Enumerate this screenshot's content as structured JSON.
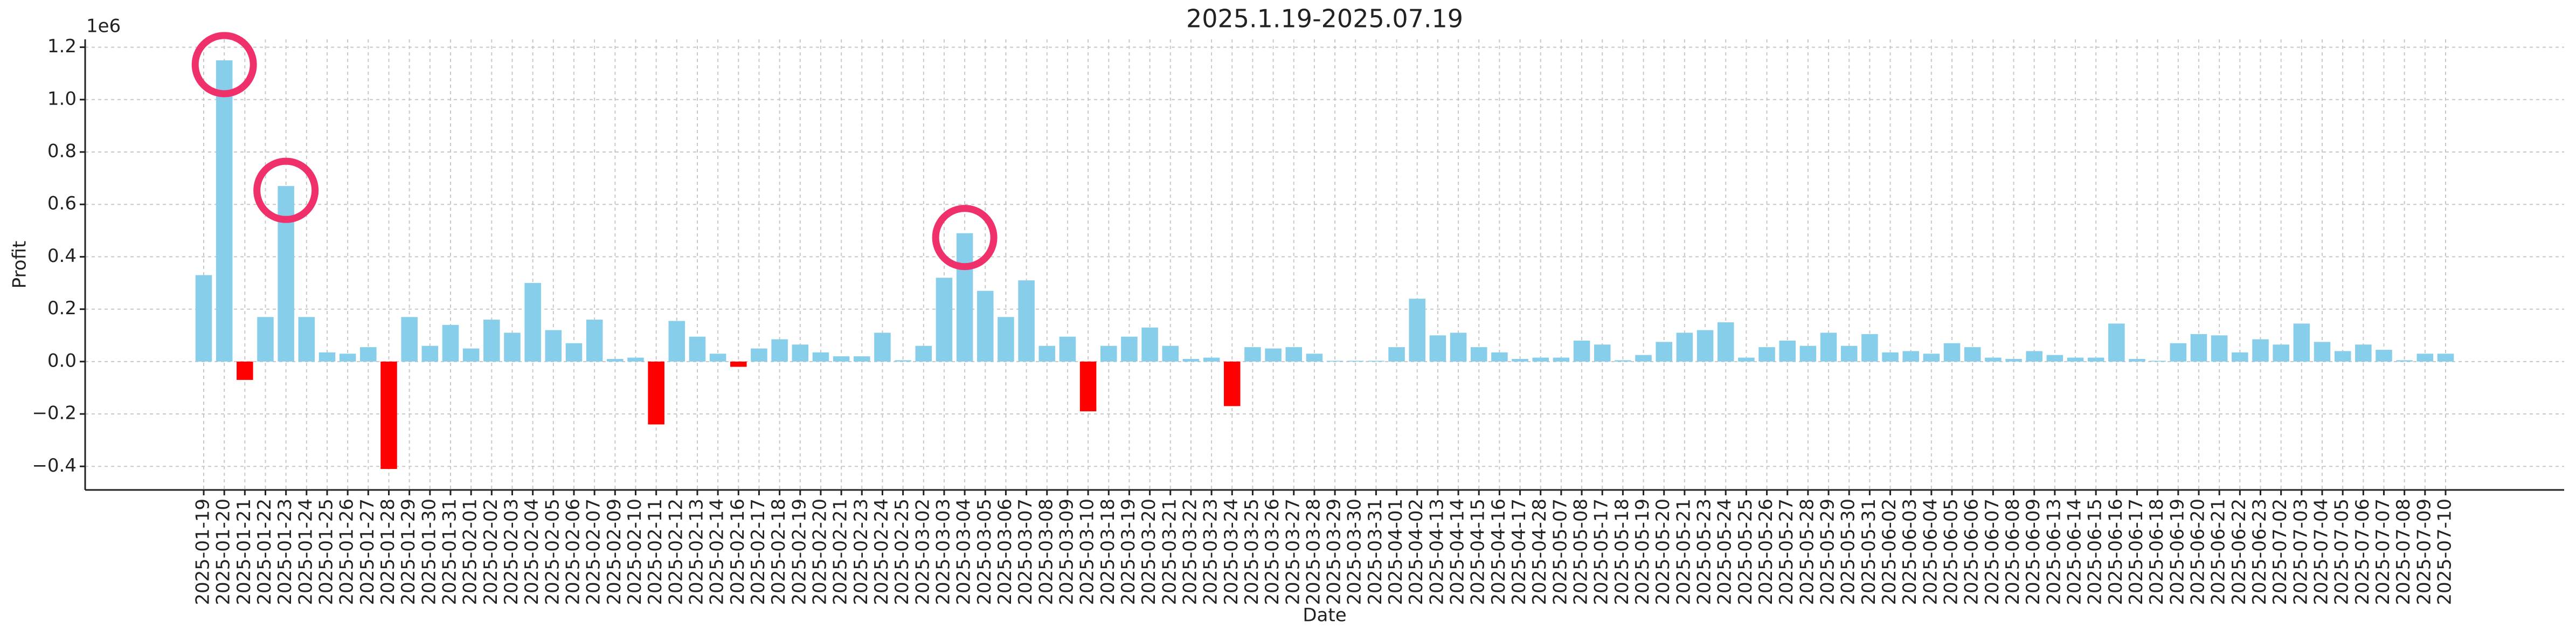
{
  "chart_data": {
    "type": "bar",
    "title": "2025.1.19-2025.07.19",
    "xlabel": "Date",
    "ylabel": "Profit",
    "offset_label": "1e6",
    "categories": [
      "2025-01-19",
      "2025-01-20",
      "2025-01-21",
      "2025-01-22",
      "2025-01-23",
      "2025-01-24",
      "2025-01-25",
      "2025-01-26",
      "2025-01-27",
      "2025-01-28",
      "2025-01-29",
      "2025-01-30",
      "2025-01-31",
      "2025-02-01",
      "2025-02-02",
      "2025-02-03",
      "2025-02-04",
      "2025-02-05",
      "2025-02-06",
      "2025-02-07",
      "2025-02-09",
      "2025-02-10",
      "2025-02-11",
      "2025-02-12",
      "2025-02-13",
      "2025-02-14",
      "2025-02-16",
      "2025-02-17",
      "2025-02-18",
      "2025-02-19",
      "2025-02-20",
      "2025-02-21",
      "2025-02-23",
      "2025-02-24",
      "2025-02-25",
      "2025-03-02",
      "2025-03-03",
      "2025-03-04",
      "2025-03-05",
      "2025-03-06",
      "2025-03-07",
      "2025-03-08",
      "2025-03-09",
      "2025-03-10",
      "2025-03-18",
      "2025-03-19",
      "2025-03-20",
      "2025-03-21",
      "2025-03-22",
      "2025-03-23",
      "2025-03-24",
      "2025-03-25",
      "2025-03-26",
      "2025-03-27",
      "2025-03-28",
      "2025-03-29",
      "2025-03-30",
      "2025-03-31",
      "2025-04-01",
      "2025-04-02",
      "2025-04-13",
      "2025-04-14",
      "2025-04-15",
      "2025-04-16",
      "2025-04-17",
      "2025-04-28",
      "2025-05-07",
      "2025-05-08",
      "2025-05-17",
      "2025-05-18",
      "2025-05-19",
      "2025-05-20",
      "2025-05-21",
      "2025-05-23",
      "2025-05-24",
      "2025-05-25",
      "2025-05-26",
      "2025-05-27",
      "2025-05-28",
      "2025-05-29",
      "2025-05-30",
      "2025-05-31",
      "2025-06-02",
      "2025-06-03",
      "2025-06-04",
      "2025-06-05",
      "2025-06-06",
      "2025-06-07",
      "2025-06-08",
      "2025-06-09",
      "2025-06-13",
      "2025-06-14",
      "2025-06-15",
      "2025-06-16",
      "2025-06-17",
      "2025-06-18",
      "2025-06-19",
      "2025-06-20",
      "2025-06-21",
      "2025-06-22",
      "2025-06-23",
      "2025-07-02",
      "2025-07-03",
      "2025-07-04",
      "2025-07-05",
      "2025-07-06",
      "2025-07-07",
      "2025-07-08",
      "2025-07-09",
      "2025-07-10"
    ],
    "values": [
      0.33,
      1.15,
      -0.07,
      0.17,
      0.67,
      0.17,
      0.035,
      0.03,
      0.055,
      -0.41,
      0.17,
      0.06,
      0.14,
      0.05,
      0.16,
      0.11,
      0.3,
      0.12,
      0.07,
      0.16,
      0.01,
      0.015,
      -0.24,
      0.155,
      0.095,
      0.03,
      -0.02,
      0.05,
      0.085,
      0.065,
      0.035,
      0.02,
      0.02,
      0.11,
      0.005,
      0.06,
      0.32,
      0.49,
      0.27,
      0.17,
      0.31,
      0.06,
      0.095,
      -0.19,
      0.06,
      0.095,
      0.13,
      0.06,
      0.01,
      0.015,
      -0.17,
      0.055,
      0.05,
      0.055,
      0.03,
      0.003,
      0.003,
      0.003,
      0.055,
      0.24,
      0.1,
      0.11,
      0.055,
      0.035,
      0.01,
      0.015,
      0.015,
      0.08,
      0.065,
      0.005,
      0.025,
      0.075,
      0.11,
      0.12,
      0.15,
      0.015,
      0.055,
      0.08,
      0.06,
      0.11,
      0.06,
      0.105,
      0.035,
      0.04,
      0.03,
      0.07,
      0.055,
      0.015,
      0.01,
      0.04,
      0.025,
      0.015,
      0.015,
      0.145,
      0.01,
      0.003,
      0.07,
      0.105,
      0.1,
      0.035,
      0.085,
      0.065,
      0.145,
      0.075,
      0.04,
      0.065,
      0.045,
      0.005,
      0.03,
      0.03
    ],
    "colors": {
      "positive": "#87ceeb",
      "negative": "#ff0000",
      "highlight": "#f0306a"
    },
    "highlights": [
      "2025-01-20",
      "2025-01-23",
      "2025-03-04"
    ],
    "ylim": [
      -0.49,
      1.23
    ],
    "yticks": [
      {
        "value": -0.4,
        "label": "−0.4"
      },
      {
        "value": -0.2,
        "label": "−0.2"
      },
      {
        "value": 0,
        "label": "0.0"
      },
      {
        "value": 0.2,
        "label": "0.2"
      },
      {
        "value": 0.4,
        "label": "0.4"
      },
      {
        "value": 0.6,
        "label": "0.6"
      },
      {
        "value": 0.8,
        "label": "0.8"
      },
      {
        "value": 1.0,
        "label": "1.0"
      },
      {
        "value": 1.2,
        "label": "1.2"
      }
    ],
    "grid": true
  }
}
